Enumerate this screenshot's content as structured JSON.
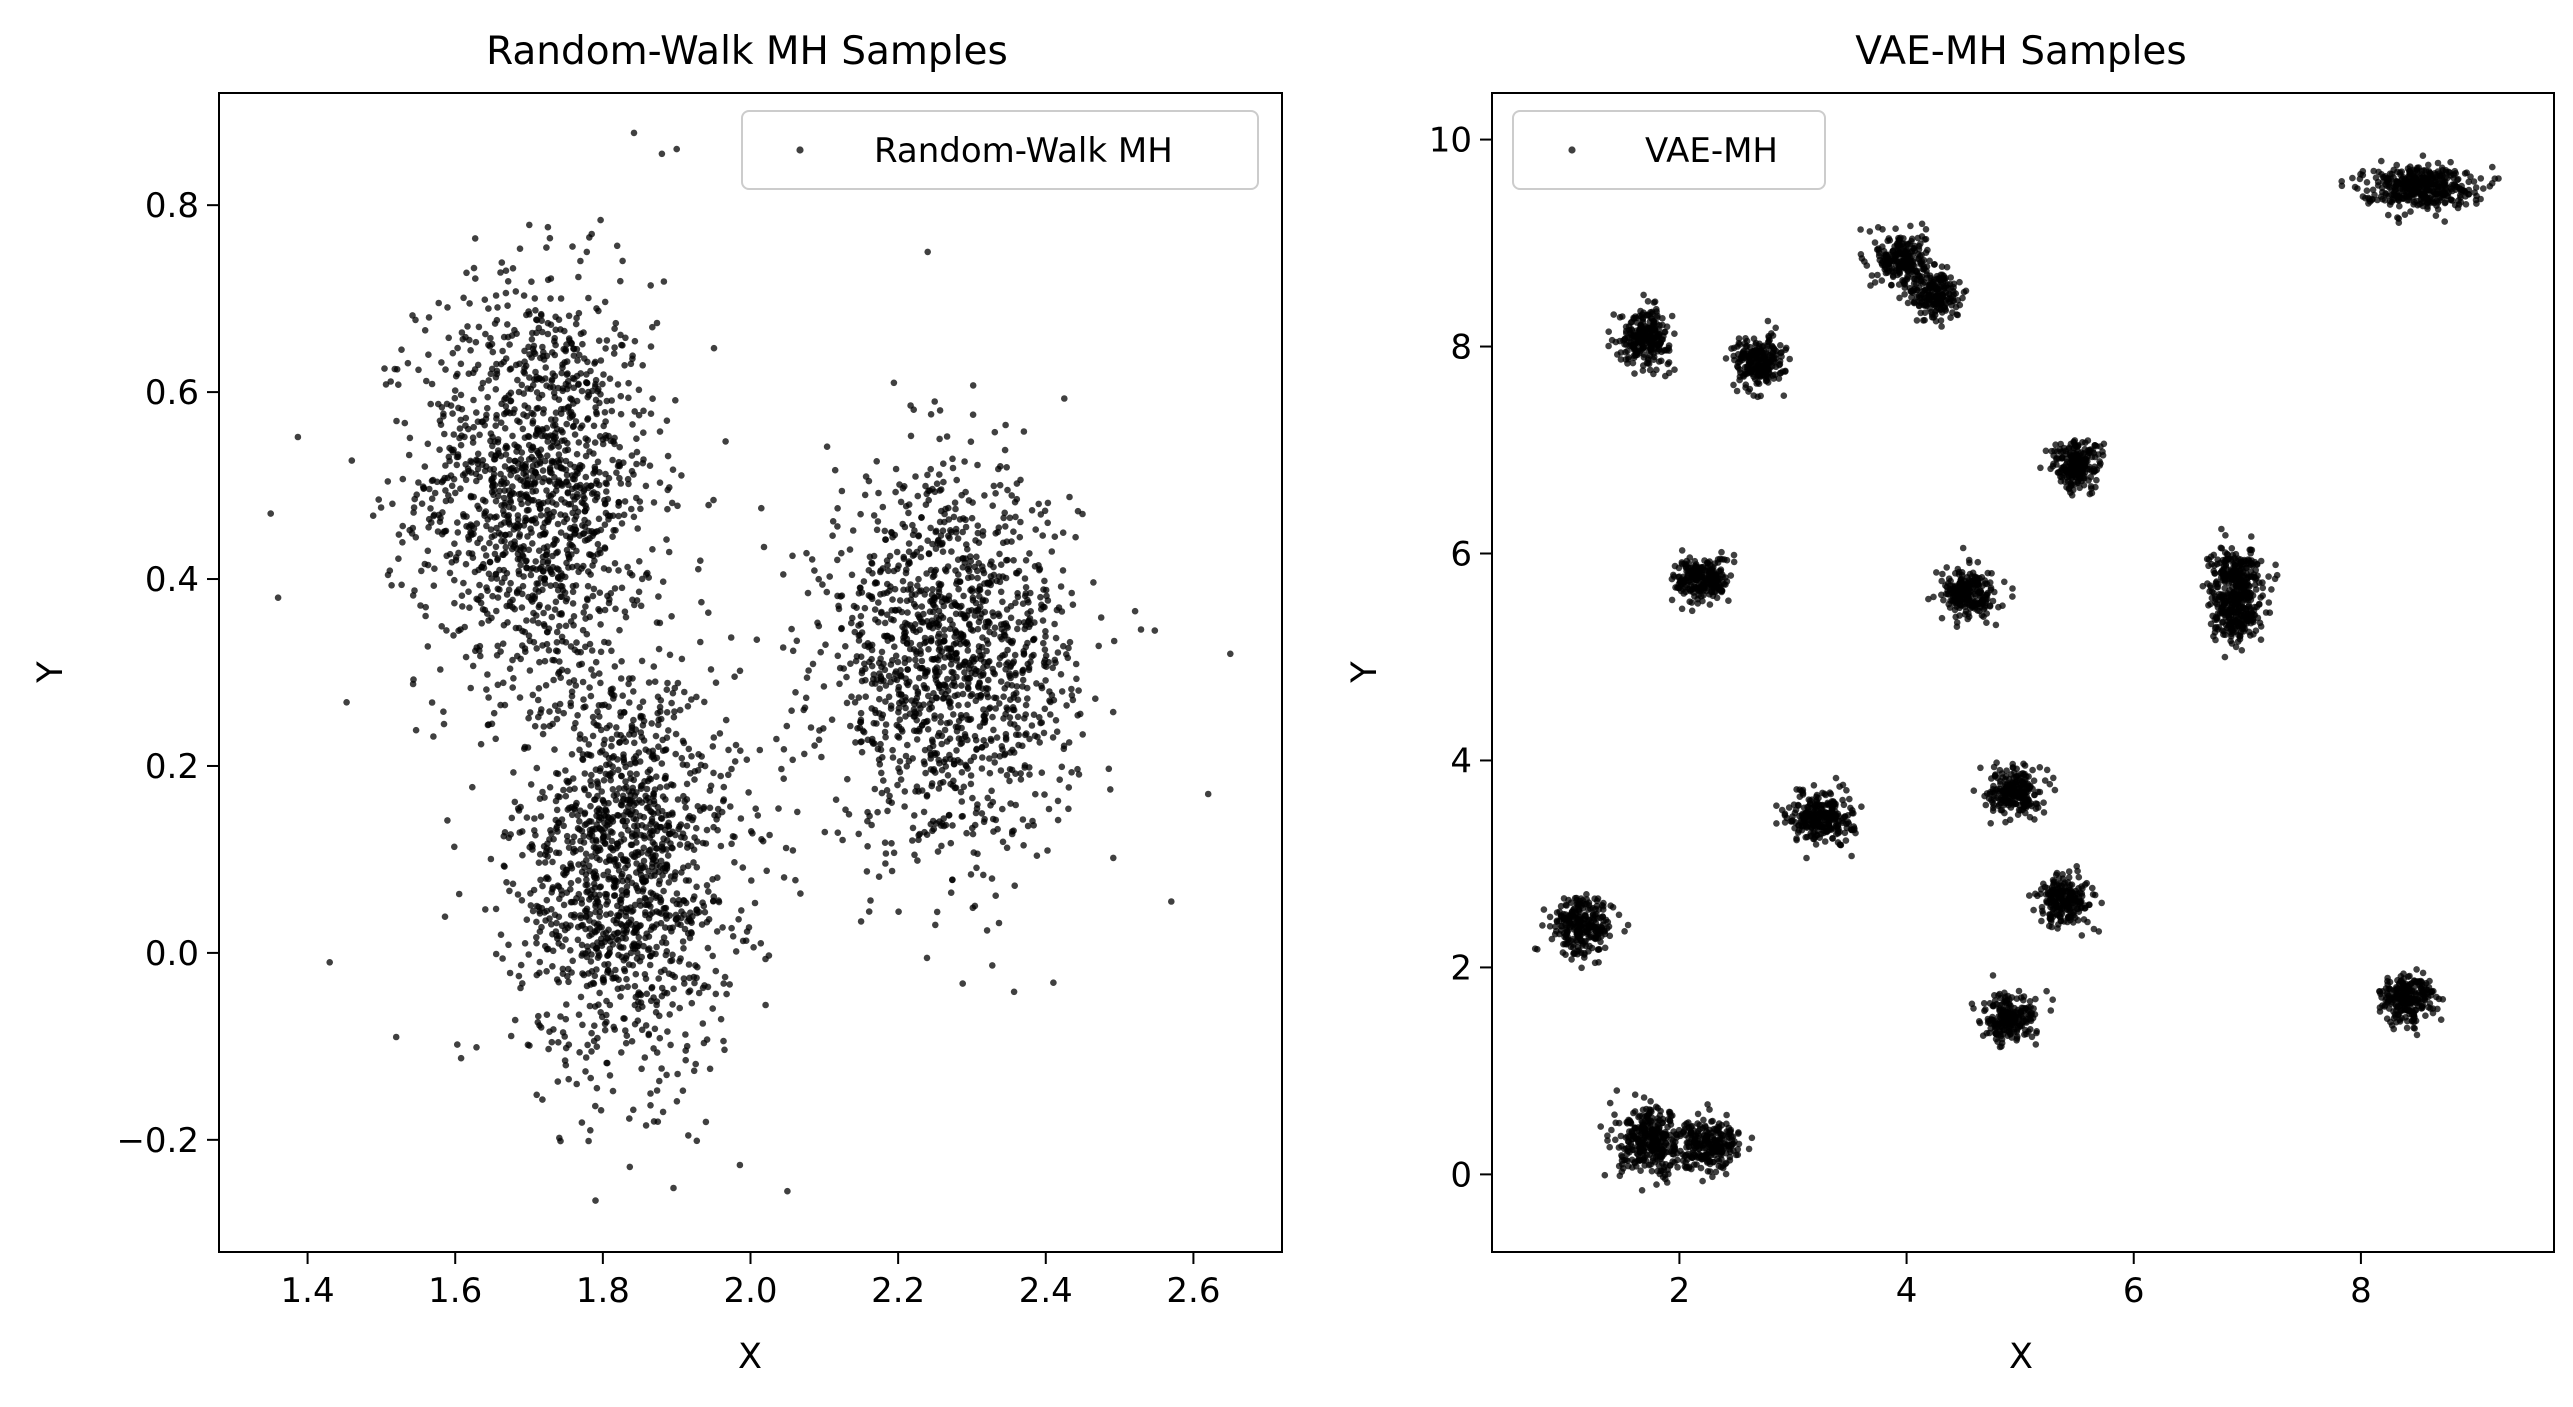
{
  "chart_data": [
    {
      "type": "scatter",
      "title": "Random-Walk MH Samples",
      "xlabel": "X",
      "ylabel": "Y",
      "xlim": [
        1.28,
        2.72
      ],
      "ylim": [
        -0.32,
        0.92
      ],
      "xticks": [
        1.4,
        1.6,
        1.8,
        2.0,
        2.2,
        2.4,
        2.6
      ],
      "xtick_labels": [
        "1.4",
        "1.6",
        "1.8",
        "2.0",
        "2.2",
        "2.4",
        "2.6"
      ],
      "yticks": [
        -0.2,
        0.0,
        0.2,
        0.4,
        0.6,
        0.8
      ],
      "ytick_labels": [
        "−0.2",
        "0.0",
        "0.2",
        "0.4",
        "0.6",
        "0.8"
      ],
      "legend": "upper right",
      "grid": false,
      "point_color": "#000000",
      "series": [
        {
          "name": "Random-Walk MH",
          "clusters": [
            {
              "cx": 1.71,
              "cy": 0.5,
              "sx": 0.08,
              "sy": 0.11,
              "n": 1400
            },
            {
              "cx": 1.83,
              "cy": 0.09,
              "sx": 0.075,
              "sy": 0.11,
              "n": 1400
            },
            {
              "cx": 2.27,
              "cy": 0.31,
              "sx": 0.085,
              "sy": 0.1,
              "n": 1400
            }
          ],
          "outliers": [
            [
              1.35,
              0.47
            ],
            [
              1.36,
              0.38
            ],
            [
              1.43,
              -0.01
            ],
            [
              1.52,
              -0.09
            ],
            [
              1.88,
              0.855
            ],
            [
              1.9,
              0.86
            ],
            [
              2.05,
              -0.255
            ],
            [
              2.24,
              0.75
            ],
            [
              2.62,
              0.17
            ],
            [
              2.65,
              0.32
            ],
            [
              2.57,
              0.055
            ],
            [
              1.79,
              -0.265
            ]
          ]
        }
      ]
    },
    {
      "type": "scatter",
      "title": "VAE-MH Samples",
      "xlabel": "X",
      "ylabel": "Y",
      "xlim": [
        0.35,
        9.7
      ],
      "ylim": [
        -0.75,
        10.45
      ],
      "xticks": [
        2,
        4,
        6,
        8
      ],
      "xtick_labels": [
        "2",
        "4",
        "6",
        "8"
      ],
      "yticks": [
        0,
        2,
        4,
        6,
        8,
        10
      ],
      "ytick_labels": [
        "0",
        "2",
        "4",
        "6",
        "8",
        "10"
      ],
      "legend": "upper left",
      "grid": false,
      "point_color": "#000000",
      "series": [
        {
          "name": "VAE-MH",
          "clusters": [
            {
              "cx": 1.7,
              "cy": 8.1,
              "sx": 0.11,
              "sy": 0.13,
              "n": 260
            },
            {
              "cx": 2.7,
              "cy": 7.85,
              "sx": 0.11,
              "sy": 0.12,
              "n": 240
            },
            {
              "cx": 3.95,
              "cy": 8.85,
              "sx": 0.11,
              "sy": 0.13,
              "n": 220
            },
            {
              "cx": 4.25,
              "cy": 8.5,
              "sx": 0.11,
              "sy": 0.13,
              "n": 220
            },
            {
              "cx": 8.5,
              "cy": 9.55,
              "sx": 0.24,
              "sy": 0.1,
              "n": 420
            },
            {
              "cx": 5.5,
              "cy": 6.85,
              "sx": 0.11,
              "sy": 0.12,
              "n": 230
            },
            {
              "cx": 2.2,
              "cy": 5.75,
              "sx": 0.12,
              "sy": 0.11,
              "n": 240
            },
            {
              "cx": 4.55,
              "cy": 5.6,
              "sx": 0.12,
              "sy": 0.12,
              "n": 240
            },
            {
              "cx": 6.9,
              "cy": 5.8,
              "sx": 0.11,
              "sy": 0.13,
              "n": 240
            },
            {
              "cx": 6.9,
              "cy": 5.4,
              "sx": 0.11,
              "sy": 0.13,
              "n": 240
            },
            {
              "cx": 4.95,
              "cy": 3.7,
              "sx": 0.11,
              "sy": 0.12,
              "n": 230
            },
            {
              "cx": 3.25,
              "cy": 3.45,
              "sx": 0.14,
              "sy": 0.12,
              "n": 280
            },
            {
              "cx": 5.4,
              "cy": 2.65,
              "sx": 0.12,
              "sy": 0.12,
              "n": 230
            },
            {
              "cx": 1.15,
              "cy": 2.4,
              "sx": 0.13,
              "sy": 0.14,
              "n": 270
            },
            {
              "cx": 8.4,
              "cy": 1.7,
              "sx": 0.12,
              "sy": 0.12,
              "n": 250
            },
            {
              "cx": 4.9,
              "cy": 1.5,
              "sx": 0.12,
              "sy": 0.11,
              "n": 230
            },
            {
              "cx": 1.75,
              "cy": 0.3,
              "sx": 0.14,
              "sy": 0.16,
              "n": 330
            },
            {
              "cx": 2.25,
              "cy": 0.3,
              "sx": 0.14,
              "sy": 0.12,
              "n": 260
            }
          ]
        }
      ]
    }
  ]
}
